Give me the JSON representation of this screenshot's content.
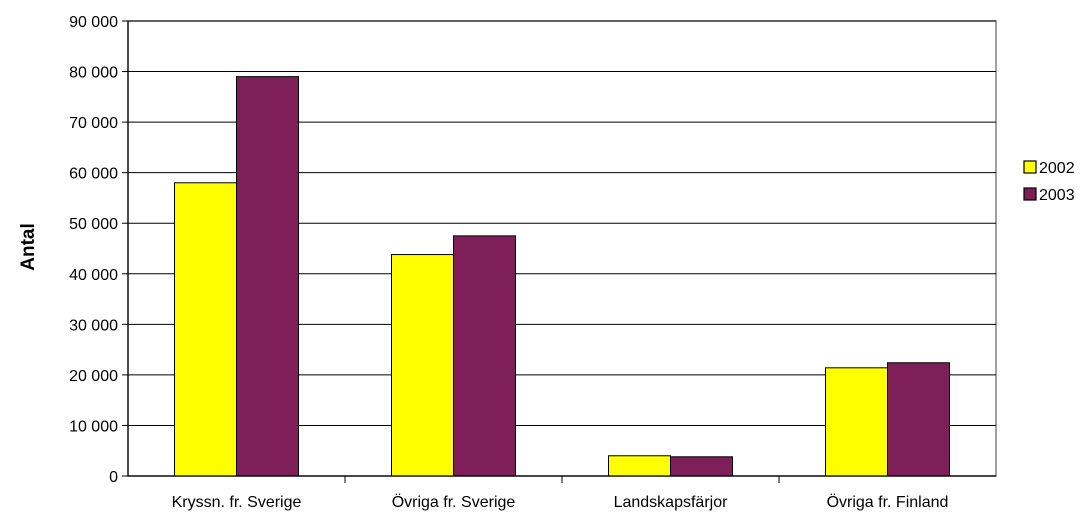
{
  "chart_data": {
    "type": "bar",
    "categories": [
      "Kryssn. fr. Sverige",
      "Övriga fr. Sverige",
      "Landskapsfärjor",
      "Övriga fr. Finland"
    ],
    "series": [
      {
        "name": "2002",
        "color": "#ffff00",
        "values": [
          58000,
          43800,
          4000,
          21400
        ]
      },
      {
        "name": "2003",
        "color": "#7f1f5a",
        "values": [
          79000,
          47500,
          3800,
          22400
        ]
      }
    ],
    "title": "",
    "xlabel": "",
    "ylabel": "Antal",
    "ylim": [
      0,
      90000
    ],
    "yticks": [
      0,
      10000,
      20000,
      30000,
      40000,
      50000,
      60000,
      70000,
      80000,
      90000
    ],
    "ytick_labels": [
      "0",
      "10 000",
      "20 000",
      "30 000",
      "40 000",
      "50 000",
      "60 000",
      "70 000",
      "80 000",
      "90 000"
    ],
    "grid": true,
    "legend": "right"
  }
}
